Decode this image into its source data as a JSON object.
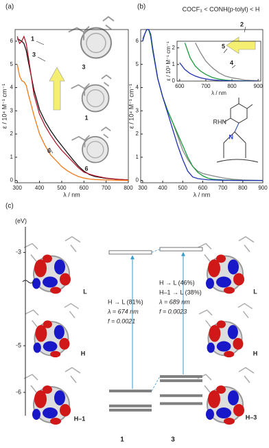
{
  "chart_data": [
    {
      "type": "line",
      "panel": "(a)",
      "x_label": "λ / nm",
      "y_label": "ε / 10⁴ M⁻¹ cm⁻¹",
      "xlim": [
        290,
        800
      ],
      "xticks": [
        300,
        400,
        500,
        600,
        700,
        800
      ],
      "ylim": [
        -0.1,
        6.5
      ],
      "yticks": [
        0,
        1,
        2,
        3,
        4,
        5,
        6
      ],
      "x": [
        300,
        310,
        320,
        330,
        340,
        350,
        375,
        400,
        425,
        450,
        475,
        500,
        525,
        550,
        575,
        600,
        625,
        650,
        700,
        750,
        800
      ],
      "series": [
        {
          "name": "1",
          "color": "#111111",
          "values": [
            6.1,
            6.05,
            6.0,
            5.9,
            5.6,
            5.1,
            3.9,
            3.05,
            2.55,
            2.15,
            1.8,
            1.5,
            1.2,
            0.9,
            0.62,
            0.4,
            0.25,
            0.17,
            0.09,
            0.05,
            0.02
          ]
        },
        {
          "name": "3",
          "color": "#b0182a",
          "values": [
            6.2,
            5.9,
            6.0,
            6.2,
            5.9,
            5.3,
            3.7,
            2.85,
            2.35,
            1.95,
            1.6,
            1.3,
            1.05,
            0.8,
            0.55,
            0.36,
            0.27,
            0.2,
            0.1,
            0.05,
            0.02
          ]
        },
        {
          "name": "6",
          "color": "#f07818",
          "values": [
            5.0,
            4.5,
            4.3,
            4.25,
            4.1,
            3.7,
            2.8,
            2.0,
            1.5,
            1.1,
            0.85,
            0.6,
            0.42,
            0.28,
            0.17,
            0.1,
            0.06,
            0.04,
            0.02,
            0.01,
            0
          ]
        }
      ],
      "structure_labels": [
        "3",
        "1",
        "6"
      ]
    },
    {
      "type": "line",
      "panel": "(b)",
      "x_label": "λ / nm",
      "y_label": "ε / 10⁴ M⁻¹ cm⁻¹",
      "xlim": [
        290,
        900
      ],
      "xticks": [
        300,
        400,
        500,
        600,
        700,
        800,
        900
      ],
      "ylim": [
        -0.1,
        6.5
      ],
      "yticks": [
        0,
        1,
        2,
        3,
        4,
        5,
        6
      ],
      "x": [
        300,
        310,
        320,
        330,
        340,
        350,
        375,
        400,
        425,
        450,
        475,
        500,
        525,
        550,
        575,
        600,
        625,
        650,
        700,
        750,
        800,
        850,
        900
      ],
      "series": [
        {
          "name": "2",
          "color": "#888888",
          "values": [
            6.1,
            6.3,
            6.5,
            6.5,
            6.2,
            5.6,
            4.4,
            3.6,
            3.0,
            2.5,
            1.9,
            1.3,
            0.9,
            0.6,
            0.4,
            0.3,
            0.25,
            0.2,
            0.11,
            0.05,
            0.02,
            0.01,
            0
          ]
        },
        {
          "name": "5",
          "color": "#1a9a3a",
          "values": [
            6.0,
            6.3,
            6.5,
            6.5,
            6.2,
            5.6,
            4.4,
            3.6,
            3.0,
            2.5,
            2.0,
            1.5,
            1.0,
            0.6,
            0.35,
            0.2,
            0.1,
            0.05,
            0.02,
            0.01,
            0,
            0,
            0
          ]
        },
        {
          "name": "4",
          "color": "#1f2fb0",
          "values": [
            6.0,
            6.3,
            6.5,
            6.5,
            6.3,
            5.7,
            4.4,
            3.6,
            2.9,
            2.2,
            1.5,
            0.9,
            0.4,
            0.15,
            0.08,
            0.05,
            0.03,
            0.02,
            0.01,
            0,
            0,
            0,
            0
          ]
        }
      ],
      "structure": {
        "substituent": "RHN",
        "atom": "N"
      }
    },
    {
      "type": "line",
      "title": "COCF₃ < CONH(p-tolyl) < H",
      "x_label": "λ / nm",
      "y_label": "ε / 10³ M⁻¹ cm⁻¹",
      "xlim": [
        590,
        910
      ],
      "xticks": [
        600,
        700,
        800,
        900
      ],
      "ylim": [
        0,
        2.4
      ],
      "yticks": [
        0,
        1,
        2
      ],
      "x": [
        600,
        620,
        640,
        660,
        680,
        700,
        725,
        750,
        775,
        800,
        850,
        900
      ],
      "series": [
        {
          "name": "2",
          "color": "#888888",
          "values": [
            null,
            null,
            null,
            2.3,
            1.7,
            1.2,
            0.8,
            0.5,
            0.3,
            0.2,
            0.06,
            0.02
          ]
        },
        {
          "name": "5",
          "color": "#1a9a3a",
          "values": [
            null,
            2.3,
            1.4,
            0.9,
            0.6,
            0.4,
            0.22,
            0.12,
            0.06,
            0.03,
            0.01,
            0
          ]
        },
        {
          "name": "4",
          "color": "#1f2fb0",
          "values": [
            1.1,
            0.7,
            0.45,
            0.3,
            0.2,
            0.13,
            0.07,
            0.04,
            0.02,
            0.01,
            0,
            0
          ]
        }
      ]
    },
    {
      "type": "energy-levels",
      "panel": "(c)",
      "y_label": "(eV)",
      "ylim": [
        -6.5,
        -2.45
      ],
      "yticks": [
        -3,
        -5,
        -6
      ],
      "series": [
        {
          "name": "1",
          "color": "#808080",
          "values": [
            -3.0,
            -5.97,
            -6.29,
            -6.38
          ]
        },
        {
          "name": "3",
          "color": "#808080",
          "values": [
            -2.93,
            -5.66,
            -5.75,
            -6.07,
            -6.24
          ]
        }
      ],
      "transitions": [
        [
          "H → L (81%)",
          "λ = 674 nm",
          "f = 0.0021"
        ],
        [
          "H → L (46%)",
          "H–1 → L (38%)",
          "λ = 689 nm",
          "f = 0.0023"
        ]
      ],
      "orbital_labels": [
        [
          "L",
          "H",
          "H–1"
        ],
        [
          "L",
          "H",
          "H–3"
        ]
      ]
    }
  ]
}
